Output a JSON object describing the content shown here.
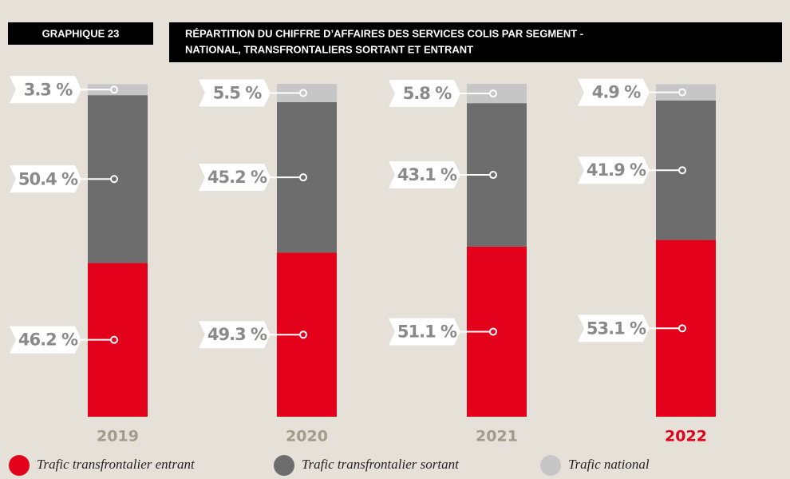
{
  "chart_data": {
    "type": "stacked_bar",
    "label": "GRAPHIQUE 23",
    "title_lines": [
      "RÉPARTITION DU CHIFFRE D’AFFAIRES DES SERVICES COLIS PAR SEGMENT -",
      "NATIONAL, TRANSFRONTALIERS SORTANT ET ENTRANT"
    ],
    "categories": [
      "2019",
      "2020",
      "2021",
      "2022"
    ],
    "category_label_colors": [
      "#a39c8a",
      "#a39c8a",
      "#a39c8a",
      "#e2001a"
    ],
    "ylim": [
      0,
      100
    ],
    "series": [
      {
        "name": "Trafic transfrontalier entrant",
        "color": "#e2001a",
        "values": [
          46.2,
          49.3,
          51.1,
          53.1
        ],
        "value_labels": [
          "46.2 %",
          "49.3 %",
          "51.1 %",
          "53.1 %"
        ]
      },
      {
        "name": "Trafic transfrontalier sortant",
        "color": "#6d6d6d",
        "values": [
          50.4,
          45.2,
          43.1,
          41.9
        ],
        "value_labels": [
          "50.4 %",
          "45.2 %",
          "43.1 %",
          "41.9 %"
        ]
      },
      {
        "name": "Trafic national",
        "color": "#c6c6c6",
        "values": [
          3.3,
          5.5,
          5.8,
          4.9
        ],
        "value_labels": [
          "3.3 %",
          "5.5 %",
          "5.8 %",
          "4.9 %"
        ]
      }
    ]
  }
}
